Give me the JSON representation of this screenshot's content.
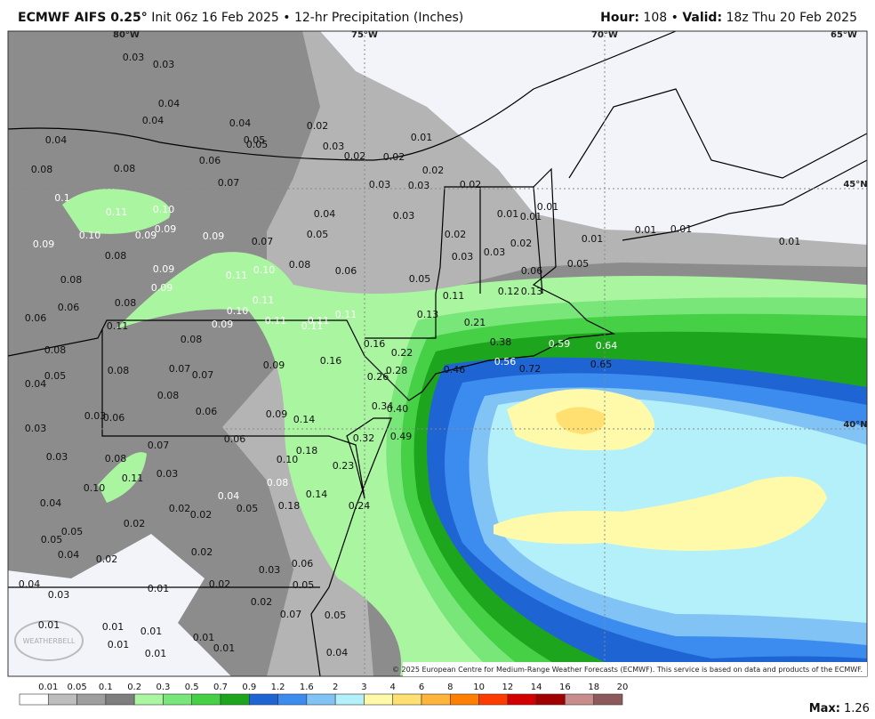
{
  "header": {
    "title": "ECMWF AIFS 0.25°",
    "subtitle": "Init 06z 16 Feb 2025 • 12-hr Precipitation (Inches)",
    "hour_label": "Hour:",
    "hour": "108",
    "valid_label": "Valid:",
    "valid": "18z Thu 20 Feb 2025"
  },
  "map": {
    "grid_labels": [
      "80°W",
      "75°W",
      "70°W",
      "65°W",
      "45°N",
      "40°N"
    ],
    "point_values": [
      "0.03",
      "0.03",
      "0.04",
      "0.04",
      "0.04",
      "0.02",
      "0.05",
      "0.05",
      "0.03",
      "0.01",
      "0.02",
      "0.02",
      "0.02",
      "0.03",
      "0.03",
      "0.02",
      "0.04",
      "0.08",
      "0.08",
      "0.06",
      "0.07",
      "0.1",
      "0.11",
      "0.10",
      "0.04",
      "0.03",
      "0.01",
      "0.01",
      "0.01",
      "0.09",
      "0.10",
      "0.09",
      "0.09",
      "0.09",
      "0.07",
      "0.05",
      "0.02",
      "0.02",
      "0.03",
      "0.03",
      "0.01",
      "0.01",
      "0.01",
      "0.01",
      "0.08",
      "0.09",
      "0.10",
      "0.08",
      "0.06",
      "0.05",
      "0.06",
      "0.05",
      "0.08",
      "0.09",
      "0.11",
      "0.06",
      "0.08",
      "0.11",
      "0.12",
      "0.13",
      "0.06",
      "0.10",
      "0.11",
      "0.11",
      "0.11",
      "0.11",
      "0.11",
      "0.13",
      "0.21",
      "0.11",
      "0.09",
      "0.08",
      "0.16",
      "0.38",
      "0.59",
      "0.64",
      "0.08",
      "0.22",
      "0.56",
      "0.08",
      "0.07",
      "0.07",
      "0.09",
      "0.16",
      "0.28",
      "0.46",
      "0.72",
      "0.65",
      "0.05",
      "0.04",
      "0.26",
      "0.08",
      "0.34",
      "0.40",
      "0.03",
      "0.06",
      "0.06",
      "0.09",
      "0.14",
      "0.03",
      "0.49",
      "0.32",
      "0.07",
      "0.06",
      "0.18",
      "0.03",
      "0.08",
      "0.10",
      "0.23",
      "0.03",
      "0.11",
      "0.10",
      "0.08",
      "0.04",
      "0.14",
      "0.04",
      "0.02",
      "0.02",
      "0.05",
      "0.18",
      "0.24",
      "0.02",
      "0.05",
      "0.05",
      "0.04",
      "0.02",
      "0.02",
      "0.03",
      "0.06",
      "0.04",
      "0.01",
      "0.02",
      "0.05",
      "0.03",
      "0.02",
      "0.07",
      "0.05",
      "0.01",
      "0.01",
      "0.01",
      "0.01",
      "0.01",
      "0.01",
      "0.01",
      "0.04"
    ],
    "copyright": "© 2025 European Centre for Medium-Range Weather Forecasts (ECMWF). This service is based on data and products of the ECMWF.",
    "logo": "WEATHERBELL"
  },
  "legend": {
    "labels": [
      "0.01",
      "0.05",
      "0.1",
      "0.2",
      "0.3",
      "0.5",
      "0.7",
      "0.9",
      "1.2",
      "1.6",
      "2",
      "3",
      "4",
      "6",
      "8",
      "10",
      "12",
      "14",
      "16",
      "18",
      "20"
    ],
    "colors": [
      "#ffffff",
      "#bdbdbd",
      "#9e9e9e",
      "#7e7e7e",
      "#aaf5a0",
      "#78e678",
      "#46d046",
      "#1ea51e",
      "#1e64d2",
      "#3c8cf0",
      "#82c3f5",
      "#b4f0fa",
      "#fffaaa",
      "#ffe070",
      "#ffb43c",
      "#ff8000",
      "#ff3c00",
      "#d20000",
      "#a00000",
      "#c88c8c",
      "#8c5a5a"
    ],
    "max_label": "Max:",
    "max": "1.26"
  }
}
